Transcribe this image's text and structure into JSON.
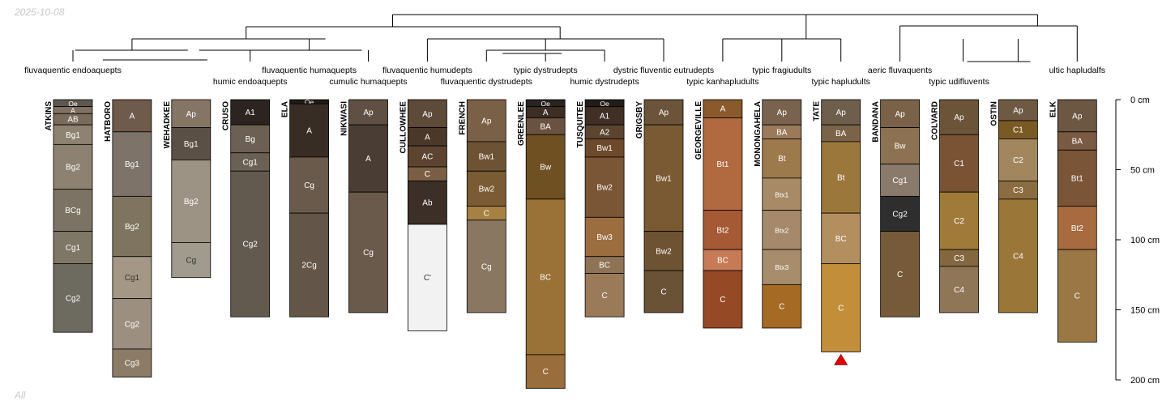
{
  "meta": {
    "date_stamp": "2025-10-08",
    "corner_label": "All"
  },
  "depth_axis": {
    "unit": "cm",
    "max_depth_cm": 200,
    "ticks": [
      {
        "value": 0,
        "label": "0 cm"
      },
      {
        "value": 50,
        "label": "50 cm"
      },
      {
        "value": 100,
        "label": "100 cm"
      },
      {
        "value": 150,
        "label": "150 cm"
      },
      {
        "value": 200,
        "label": "200 cm"
      }
    ]
  },
  "taxa_row1": [
    {
      "label": "fluvaquentic endoaquepts",
      "under": 0
    },
    {
      "label": "fluvaquentic humaquepts",
      "under": 4
    },
    {
      "label": "fluvaquentic humudepts",
      "under": 6
    },
    {
      "label": "typic dystrudepts",
      "under": 8
    },
    {
      "label": "dystric fluventic eutrudepts",
      "under": 10
    },
    {
      "label": "typic fragiudults",
      "under": 12
    },
    {
      "label": "aeric fluvaquents",
      "under": 14
    },
    {
      "label": "ultic hapludalfs",
      "under": 17
    }
  ],
  "taxa_row2": [
    {
      "label": "humic endoaquepts",
      "under": 3
    },
    {
      "label": "cumulic humaquepts",
      "under": 5
    },
    {
      "label": "fluvaquentic dystrudepts",
      "under": 7
    },
    {
      "label": "humic dystrudepts",
      "under": 9
    },
    {
      "label": "typic kanhapludults",
      "under": 11
    },
    {
      "label": "typic hapludults",
      "under": 13
    },
    {
      "label": "typic udifluvents",
      "under": 15
    }
  ],
  "profiles": [
    {
      "id": "ATKINS",
      "depth": 166,
      "horizons": [
        {
          "name": "Oe",
          "top": 0,
          "bottom": 5,
          "color": "#5f574f"
        },
        {
          "name": "A",
          "top": 5,
          "bottom": 10,
          "color": "#7f7264"
        },
        {
          "name": "AB",
          "top": 10,
          "bottom": 18,
          "color": "#7a6b5b"
        },
        {
          "name": "Bg1",
          "top": 18,
          "bottom": 32,
          "color": "#8e8270"
        },
        {
          "name": "Bg2",
          "top": 32,
          "bottom": 64,
          "color": "#8d8271"
        },
        {
          "name": "BCg",
          "top": 64,
          "bottom": 94,
          "color": "#7c7364"
        },
        {
          "name": "Cg1",
          "top": 94,
          "bottom": 117,
          "color": "#7f7766"
        },
        {
          "name": "Cg2",
          "top": 117,
          "bottom": 166,
          "color": "#6d6a60"
        }
      ]
    },
    {
      "id": "HATBORO",
      "depth": 198,
      "horizons": [
        {
          "name": "A",
          "top": 0,
          "bottom": 23,
          "color": "#6e5b4b"
        },
        {
          "name": "Bg1",
          "top": 23,
          "bottom": 69,
          "color": "#7d7368"
        },
        {
          "name": "Bg2",
          "top": 69,
          "bottom": 112,
          "color": "#7f7460"
        },
        {
          "name": "Cg1",
          "top": 112,
          "bottom": 142,
          "color": "#a59785"
        },
        {
          "name": "Cg2",
          "top": 142,
          "bottom": 178,
          "color": "#9c8f7f"
        },
        {
          "name": "Cg3",
          "top": 178,
          "bottom": 198,
          "color": "#8c7c67"
        }
      ]
    },
    {
      "id": "WEHADKEE",
      "depth": 127,
      "horizons": [
        {
          "name": "Ap",
          "top": 0,
          "bottom": 20,
          "color": "#857565"
        },
        {
          "name": "Bg1",
          "top": 20,
          "bottom": 43,
          "color": "#5a5045"
        },
        {
          "name": "Bg2",
          "top": 43,
          "bottom": 102,
          "color": "#9d9385"
        },
        {
          "name": "Cg",
          "top": 102,
          "bottom": 127,
          "color": "#a19b8e"
        }
      ]
    },
    {
      "id": "CRUSO",
      "depth": 155,
      "horizons": [
        {
          "name": "A1",
          "top": 0,
          "bottom": 18,
          "color": "#2b2420"
        },
        {
          "name": "Bg",
          "top": 18,
          "bottom": 38,
          "color": "#6c6054"
        },
        {
          "name": "Cg1",
          "top": 38,
          "bottom": 51,
          "color": "#6b6054"
        },
        {
          "name": "Cg2",
          "top": 51,
          "bottom": 155,
          "color": "#635a4f"
        }
      ]
    },
    {
      "id": "ELA",
      "depth": 155,
      "horizons": [
        {
          "name": "Oe",
          "top": 0,
          "bottom": 3,
          "color": "#211b17"
        },
        {
          "name": "A",
          "top": 3,
          "bottom": 41,
          "color": "#382d25"
        },
        {
          "name": "Cg",
          "top": 41,
          "bottom": 81,
          "color": "#6a5a4b"
        },
        {
          "name": "2Cg",
          "top": 81,
          "bottom": 155,
          "color": "#635547"
        }
      ]
    },
    {
      "id": "NIKWASI",
      "depth": 152,
      "horizons": [
        {
          "name": "Ap",
          "top": 0,
          "bottom": 18,
          "color": "#5f5043"
        },
        {
          "name": "A",
          "top": 18,
          "bottom": 66,
          "color": "#4a3e34"
        },
        {
          "name": "Cg",
          "top": 66,
          "bottom": 152,
          "color": "#6a5a4b"
        }
      ]
    },
    {
      "id": "CULLOWHEE",
      "depth": 165,
      "horizons": [
        {
          "name": "Ap",
          "top": 0,
          "bottom": 20,
          "color": "#5e4a39"
        },
        {
          "name": "A",
          "top": 20,
          "bottom": 33,
          "color": "#4a3828"
        },
        {
          "name": "AC",
          "top": 33,
          "bottom": 48,
          "color": "#5c4430"
        },
        {
          "name": "C",
          "top": 48,
          "bottom": 58,
          "color": "#7b5f45"
        },
        {
          "name": "Ab",
          "top": 58,
          "bottom": 89,
          "color": "#3b2f28"
        },
        {
          "name": "C'",
          "top": 89,
          "bottom": 165,
          "color": "#f2f2f2"
        }
      ]
    },
    {
      "id": "FRENCH",
      "depth": 152,
      "horizons": [
        {
          "name": "Ap",
          "top": 0,
          "bottom": 30,
          "color": "#7a6046"
        },
        {
          "name": "Bw1",
          "top": 30,
          "bottom": 51,
          "color": "#6d5234"
        },
        {
          "name": "Bw2",
          "top": 51,
          "bottom": 76,
          "color": "#7a5b33"
        },
        {
          "name": "C",
          "top": 76,
          "bottom": 86,
          "color": "#a78143"
        },
        {
          "name": "Cg",
          "top": 86,
          "bottom": 152,
          "color": "#8a7762"
        }
      ]
    },
    {
      "id": "GREENLEE",
      "depth": 206,
      "horizons": [
        {
          "name": "Oe",
          "top": 0,
          "bottom": 5,
          "color": "#2a2320"
        },
        {
          "name": "A",
          "top": 5,
          "bottom": 13,
          "color": "#3c2e25"
        },
        {
          "name": "BA",
          "top": 13,
          "bottom": 25,
          "color": "#6a5240"
        },
        {
          "name": "Bw",
          "top": 25,
          "bottom": 71,
          "color": "#6e5022"
        },
        {
          "name": "BC",
          "top": 71,
          "bottom": 182,
          "color": "#9a7136"
        },
        {
          "name": "C",
          "top": 182,
          "bottom": 206,
          "color": "#9a6d3c"
        }
      ]
    },
    {
      "id": "TUSQUITEE",
      "depth": 155,
      "horizons": [
        {
          "name": "Oe",
          "top": 0,
          "bottom": 5,
          "color": "#231d19"
        },
        {
          "name": "A1",
          "top": 5,
          "bottom": 18,
          "color": "#3f2f24"
        },
        {
          "name": "A2",
          "top": 18,
          "bottom": 28,
          "color": "#5c4430"
        },
        {
          "name": "Bw1",
          "top": 28,
          "bottom": 41,
          "color": "#6e4a2c"
        },
        {
          "name": "Bw2",
          "top": 41,
          "bottom": 84,
          "color": "#7a5536"
        },
        {
          "name": "Bw3",
          "top": 84,
          "bottom": 112,
          "color": "#9c6d3e"
        },
        {
          "name": "BC",
          "top": 112,
          "bottom": 124,
          "color": "#8f7357"
        },
        {
          "name": "C",
          "top": 124,
          "bottom": 155,
          "color": "#9a7a58"
        }
      ]
    },
    {
      "id": "GRIGSBY",
      "depth": 152,
      "horizons": [
        {
          "name": "Ap",
          "top": 0,
          "bottom": 18,
          "color": "#6b5439"
        },
        {
          "name": "Bw1",
          "top": 18,
          "bottom": 94,
          "color": "#7a5a33"
        },
        {
          "name": "Bw2",
          "top": 94,
          "bottom": 122,
          "color": "#6d5332"
        },
        {
          "name": "C",
          "top": 122,
          "bottom": 152,
          "color": "#6a5236"
        }
      ]
    },
    {
      "id": "GEORGEVILLE",
      "depth": 163,
      "horizons": [
        {
          "name": "A",
          "top": 0,
          "bottom": 13,
          "color": "#8a5a2c"
        },
        {
          "name": "Bt1",
          "top": 13,
          "bottom": 79,
          "color": "#b16a3f"
        },
        {
          "name": "Bt2",
          "top": 79,
          "bottom": 107,
          "color": "#a55a35"
        },
        {
          "name": "BC",
          "top": 107,
          "bottom": 122,
          "color": "#c77a56"
        },
        {
          "name": "C",
          "top": 122,
          "bottom": 163,
          "color": "#954a25"
        }
      ]
    },
    {
      "id": "MONONGAHELA",
      "depth": 163,
      "horizons": [
        {
          "name": "Ap",
          "top": 0,
          "bottom": 18,
          "color": "#7a634e"
        },
        {
          "name": "BA",
          "top": 18,
          "bottom": 28,
          "color": "#9a7a5a"
        },
        {
          "name": "Bt",
          "top": 28,
          "bottom": 56,
          "color": "#9c7a4c"
        },
        {
          "name": "Btx1",
          "top": 56,
          "bottom": 79,
          "color": "#a88a66"
        },
        {
          "name": "Btx2",
          "top": 79,
          "bottom": 107,
          "color": "#a5896a"
        },
        {
          "name": "Btx3",
          "top": 107,
          "bottom": 132,
          "color": "#a88d6c"
        },
        {
          "name": "C",
          "top": 132,
          "bottom": 163,
          "color": "#a56a23"
        }
      ]
    },
    {
      "id": "TATE",
      "depth": 180,
      "marker": "red-triangle",
      "horizons": [
        {
          "name": "Ap",
          "top": 0,
          "bottom": 18,
          "color": "#6e5e4c"
        },
        {
          "name": "BA",
          "top": 18,
          "bottom": 30,
          "color": "#7b634a"
        },
        {
          "name": "Bt",
          "top": 30,
          "bottom": 81,
          "color": "#9c773c"
        },
        {
          "name": "BC",
          "top": 81,
          "bottom": 117,
          "color": "#b38e5f"
        },
        {
          "name": "C",
          "top": 117,
          "bottom": 180,
          "color": "#c38e3a"
        }
      ]
    },
    {
      "id": "BANDANA",
      "depth": 155,
      "horizons": [
        {
          "name": "Ap",
          "top": 0,
          "bottom": 20,
          "color": "#7a6249"
        },
        {
          "name": "Bw",
          "top": 20,
          "bottom": 46,
          "color": "#8c7252"
        },
        {
          "name": "Cg1",
          "top": 46,
          "bottom": 69,
          "color": "#8a7a6c"
        },
        {
          "name": "Cg2",
          "top": 69,
          "bottom": 94,
          "color": "#2e2e2e"
        },
        {
          "name": "C",
          "top": 94,
          "bottom": 155,
          "color": "#765a3a"
        }
      ]
    },
    {
      "id": "COLVARD",
      "depth": 152,
      "horizons": [
        {
          "name": "Ap",
          "top": 0,
          "bottom": 25,
          "color": "#6b5438"
        },
        {
          "name": "C1",
          "top": 25,
          "bottom": 66,
          "color": "#7a5335"
        },
        {
          "name": "C2",
          "top": 66,
          "bottom": 107,
          "color": "#a07a38"
        },
        {
          "name": "C3",
          "top": 107,
          "bottom": 119,
          "color": "#85673f"
        },
        {
          "name": "C4",
          "top": 119,
          "bottom": 152,
          "color": "#8f7657"
        }
      ]
    },
    {
      "id": "OSTIN",
      "depth": 152,
      "horizons": [
        {
          "name": "Ap",
          "top": 0,
          "bottom": 15,
          "color": "#6e5a43"
        },
        {
          "name": "C1",
          "top": 15,
          "bottom": 28,
          "color": "#7a5a24"
        },
        {
          "name": "C2",
          "top": 28,
          "bottom": 58,
          "color": "#a2875e"
        },
        {
          "name": "C3",
          "top": 58,
          "bottom": 71,
          "color": "#8c6d42"
        },
        {
          "name": "C4",
          "top": 71,
          "bottom": 152,
          "color": "#9a7638"
        }
      ]
    },
    {
      "id": "ELK",
      "depth": 173,
      "horizons": [
        {
          "name": "Ap",
          "top": 0,
          "bottom": 23,
          "color": "#6b5742"
        },
        {
          "name": "BA",
          "top": 23,
          "bottom": 36,
          "color": "#7a5a43"
        },
        {
          "name": "Bt1",
          "top": 36,
          "bottom": 76,
          "color": "#7a5538"
        },
        {
          "name": "Bt2",
          "top": 76,
          "bottom": 107,
          "color": "#a86a3f"
        },
        {
          "name": "C",
          "top": 107,
          "bottom": 173,
          "color": "#9a7744"
        }
      ]
    }
  ]
}
